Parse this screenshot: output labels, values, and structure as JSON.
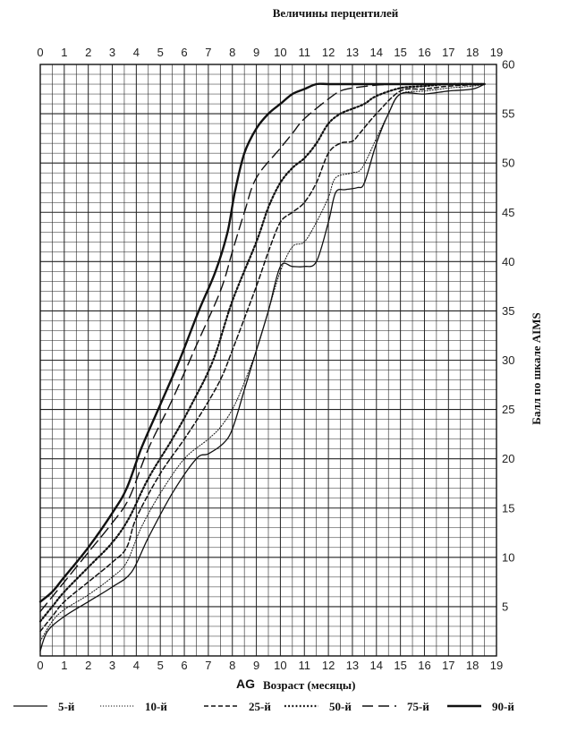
{
  "chart_data": {
    "type": "line",
    "title": "Величины перцентилей",
    "xlabel_prefix": "AG",
    "xlabel": "Возраст (месяцы)",
    "ylabel": "Балл по шкале AIMS",
    "xlim": [
      0,
      19
    ],
    "ylim": [
      0,
      60
    ],
    "x_ticks": [
      "0",
      "1",
      "2",
      "3",
      "4",
      "5",
      "6",
      "7",
      "8",
      "9",
      "10",
      "11",
      "12",
      "13",
      "14",
      "15",
      "16",
      "17",
      "18",
      "19"
    ],
    "y_ticks": [
      "5",
      "10",
      "15",
      "20",
      "25",
      "30",
      "35",
      "40",
      "45",
      "50",
      "55",
      "60"
    ],
    "grid": true,
    "legend_position": "bottom",
    "series": [
      {
        "name": "5-й",
        "style": "solid-thin",
        "points": [
          [
            0,
            0.5
          ],
          [
            0.3,
            2.5
          ],
          [
            1,
            4
          ],
          [
            2,
            5.5
          ],
          [
            3,
            7
          ],
          [
            3.8,
            8.5
          ],
          [
            4.5,
            12
          ],
          [
            5.5,
            16.5
          ],
          [
            6.5,
            20
          ],
          [
            7,
            20.5
          ],
          [
            7.6,
            21.5
          ],
          [
            8,
            23
          ],
          [
            8.5,
            27
          ],
          [
            9,
            31
          ],
          [
            9.5,
            35
          ],
          [
            10,
            39.5
          ],
          [
            10.5,
            39.5
          ],
          [
            11,
            39.5
          ],
          [
            11.5,
            40
          ],
          [
            12,
            44
          ],
          [
            12.3,
            47
          ],
          [
            12.7,
            47.3
          ],
          [
            13.2,
            47.5
          ],
          [
            13.5,
            48
          ],
          [
            14,
            52
          ],
          [
            14.5,
            55
          ],
          [
            15,
            57
          ],
          [
            16,
            57
          ],
          [
            17,
            57.3
          ],
          [
            18,
            57.5
          ],
          [
            18.5,
            58
          ]
        ]
      },
      {
        "name": "10-й",
        "style": "dotted-thin",
        "points": [
          [
            0,
            1.5
          ],
          [
            0.5,
            3.5
          ],
          [
            1,
            4.7
          ],
          [
            2,
            6.2
          ],
          [
            3,
            8
          ],
          [
            3.6,
            9.5
          ],
          [
            4.2,
            13
          ],
          [
            5,
            16.5
          ],
          [
            6,
            20
          ],
          [
            7,
            22
          ],
          [
            7.6,
            23.5
          ],
          [
            8.2,
            26
          ],
          [
            9,
            31
          ],
          [
            9.5,
            35
          ],
          [
            10,
            39
          ],
          [
            10.5,
            41.5
          ],
          [
            11,
            42
          ],
          [
            11.5,
            44
          ],
          [
            12,
            46.5
          ],
          [
            12.3,
            48.5
          ],
          [
            13,
            49
          ],
          [
            13.4,
            49.5
          ],
          [
            14,
            52.5
          ],
          [
            14.5,
            55
          ],
          [
            15,
            57
          ],
          [
            16,
            57.3
          ],
          [
            17,
            57.6
          ],
          [
            18,
            57.8
          ],
          [
            18.5,
            58
          ]
        ]
      },
      {
        "name": "25-й",
        "style": "dashed",
        "points": [
          [
            0,
            2.5
          ],
          [
            0.5,
            4
          ],
          [
            1,
            5.5
          ],
          [
            2,
            7.5
          ],
          [
            3,
            9.5
          ],
          [
            3.6,
            11
          ],
          [
            4,
            14
          ],
          [
            5,
            18.5
          ],
          [
            6,
            22
          ],
          [
            6.8,
            25
          ],
          [
            7.5,
            28
          ],
          [
            8,
            31
          ],
          [
            9,
            37.5
          ],
          [
            9.5,
            41
          ],
          [
            10,
            44
          ],
          [
            10.5,
            45
          ],
          [
            11,
            46
          ],
          [
            11.5,
            48
          ],
          [
            12,
            51
          ],
          [
            12.5,
            52
          ],
          [
            13,
            52.2
          ],
          [
            13.3,
            53
          ],
          [
            14,
            55
          ],
          [
            15,
            57.3
          ],
          [
            16,
            57.5
          ],
          [
            17,
            57.8
          ],
          [
            18.5,
            58
          ]
        ]
      },
      {
        "name": "50-й",
        "style": "dotted-thick",
        "points": [
          [
            0,
            3.5
          ],
          [
            0.5,
            5
          ],
          [
            1,
            6.5
          ],
          [
            2,
            9
          ],
          [
            3,
            11.5
          ],
          [
            3.7,
            14
          ],
          [
            4.5,
            18
          ],
          [
            5.5,
            22
          ],
          [
            6.3,
            25.5
          ],
          [
            7.2,
            30
          ],
          [
            8,
            36
          ],
          [
            9,
            42
          ],
          [
            9.5,
            45.5
          ],
          [
            10,
            48
          ],
          [
            10.5,
            49.5
          ],
          [
            11,
            50.5
          ],
          [
            11.5,
            52
          ],
          [
            12,
            54
          ],
          [
            12.5,
            55
          ],
          [
            13,
            55.5
          ],
          [
            13.5,
            56
          ],
          [
            14,
            56.8
          ],
          [
            15,
            57.6
          ],
          [
            16,
            57.8
          ],
          [
            17,
            58
          ],
          [
            18.5,
            58
          ]
        ]
      },
      {
        "name": "75-й",
        "style": "long-dash",
        "points": [
          [
            0,
            4.5
          ],
          [
            0.5,
            6
          ],
          [
            1,
            7.5
          ],
          [
            2,
            10.5
          ],
          [
            3,
            13.5
          ],
          [
            3.7,
            16
          ],
          [
            4.5,
            21
          ],
          [
            5.5,
            26
          ],
          [
            6.5,
            31.5
          ],
          [
            7.5,
            37
          ],
          [
            8,
            41
          ],
          [
            8.5,
            45
          ],
          [
            9,
            48.5
          ],
          [
            10,
            51.5
          ],
          [
            10.5,
            53
          ],
          [
            11,
            54.5
          ],
          [
            12,
            56.5
          ],
          [
            12.5,
            57.3
          ],
          [
            13,
            57.6
          ],
          [
            14,
            57.9
          ],
          [
            15,
            58
          ],
          [
            16,
            58
          ],
          [
            17,
            58
          ],
          [
            18.5,
            58
          ]
        ]
      },
      {
        "name": "90-й",
        "style": "solid-thick",
        "points": [
          [
            0,
            5.5
          ],
          [
            0.5,
            6.5
          ],
          [
            1,
            8
          ],
          [
            2,
            11
          ],
          [
            3,
            14.5
          ],
          [
            3.6,
            17
          ],
          [
            4.2,
            21
          ],
          [
            5,
            25.5
          ],
          [
            5.8,
            30
          ],
          [
            6.6,
            35
          ],
          [
            7.3,
            39
          ],
          [
            7.8,
            43
          ],
          [
            8.1,
            47
          ],
          [
            8.5,
            51
          ],
          [
            9,
            53.5
          ],
          [
            9.5,
            55
          ],
          [
            10,
            56
          ],
          [
            10.5,
            57
          ],
          [
            11,
            57.5
          ],
          [
            11.5,
            58
          ],
          [
            12,
            58
          ],
          [
            13,
            58
          ],
          [
            14,
            58
          ],
          [
            15,
            58
          ],
          [
            16,
            58
          ],
          [
            17,
            58
          ],
          [
            18.5,
            58
          ]
        ]
      }
    ]
  }
}
